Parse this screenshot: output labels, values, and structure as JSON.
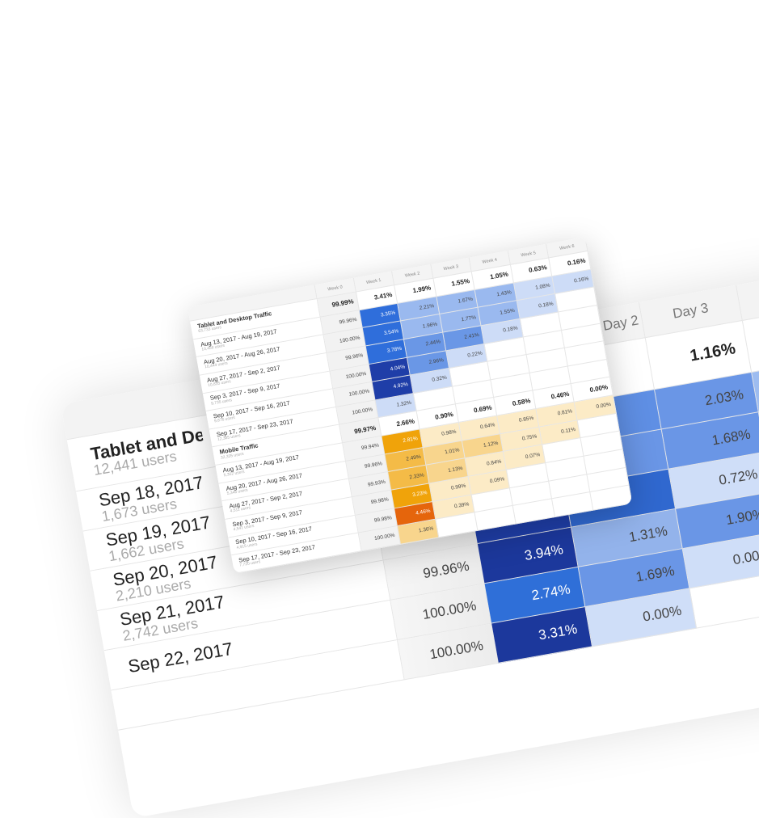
{
  "background_table": {
    "headers": [
      "",
      "",
      "",
      "Day 2",
      "Day 3",
      ""
    ],
    "total_row": {
      "label": "Tablet and Desktop Traffic",
      "users": "12,441 users",
      "values": [
        "",
        "",
        "",
        "1.16%",
        ""
      ]
    },
    "rows": [
      {
        "label": "Sep 18, 2017",
        "users": "1,673 users",
        "values": [
          "",
          "",
          "",
          "2.03%",
          ""
        ],
        "fills": [
          null,
          null,
          "#5f8fe4",
          "#6a96e6",
          "#9dbcf0"
        ]
      },
      {
        "label": "Sep 19, 2017",
        "users": "1,662 users",
        "values": [
          "",
          "",
          "",
          "1.68%",
          ""
        ],
        "fills": [
          null,
          null,
          "#6a96e6",
          "#6a96e6",
          "#cfdef8"
        ]
      },
      {
        "label": "Sep 20, 2017",
        "users": "2,210 users",
        "values": [
          "",
          "",
          "",
          "0.72%",
          ""
        ],
        "fills": [
          null,
          "#1f3ea8",
          "#3068cf",
          "#cfdef8",
          "#cfdef8"
        ]
      },
      {
        "label": "Sep 21, 2017",
        "users": "2,742 users",
        "values": [
          "99.96%",
          "3.94%",
          "1.31%",
          "1.90%",
          ""
        ],
        "fills": [
          null,
          null,
          null,
          null,
          "#cfdef8"
        ]
      },
      {
        "label": "Sep 22, 2017",
        "users": "",
        "values": [
          "100.00%",
          "2.74%",
          "1.69%",
          "0.00%",
          ""
        ],
        "fills": [
          null,
          null,
          null,
          null,
          null
        ]
      },
      {
        "label": "",
        "users": "",
        "values": [
          "100.00%",
          "3.31%",
          "0.00%",
          "",
          ""
        ],
        "fills": [
          null,
          null,
          null,
          null,
          null
        ]
      }
    ]
  },
  "cohort_card": {
    "headers": [
      "",
      "Week 0",
      "Week 1",
      "Week 2",
      "Week 3",
      "Week 4",
      "Week 5",
      "Week 6"
    ],
    "groups": [
      {
        "palette": "blue",
        "label": "Tablet and Desktop Traffic",
        "users": "63,733 users",
        "totals": [
          "99.99%",
          "3.41%",
          "1.99%",
          "1.55%",
          "1.05%",
          "0.63%",
          "0.16%"
        ],
        "rows": [
          {
            "label": "Aug 13, 2017 - Aug 19, 2017",
            "users": "10,458 users",
            "values": [
              "99.96%",
              "3.35%",
              "2.21%",
              "1.67%",
              "1.43%",
              "1.08%",
              "0.16%"
            ]
          },
          {
            "label": "Aug 20, 2017 - Aug 26, 2017",
            "users": "10,444 users",
            "values": [
              "100.00%",
              "3.54%",
              "1.96%",
              "1.77%",
              "1.55%",
              "0.18%"
            ]
          },
          {
            "label": "Aug 27, 2017 - Sep 2, 2017",
            "users": "10,835 users",
            "values": [
              "99.96%",
              "3.78%",
              "2.44%",
              "2.41%",
              "0.18%"
            ]
          },
          {
            "label": "Sep 3, 2017 - Sep 9, 2017",
            "users": "9,735 users",
            "values": [
              "100.00%",
              "4.04%",
              "2.96%",
              "0.22%"
            ]
          },
          {
            "label": "Sep 10, 2017 - Sep 16, 2017",
            "users": "9,876 users",
            "values": [
              "100.00%",
              "4.92%",
              "0.32%"
            ]
          },
          {
            "label": "Sep 17, 2017 - Sep 23, 2017",
            "users": "12,385 users",
            "values": [
              "100.00%",
              "1.32%"
            ]
          }
        ]
      },
      {
        "palette": "orange",
        "label": "Mobile Traffic",
        "users": "32,335 users",
        "totals": [
          "99.97%",
          "2.66%",
          "0.90%",
          "0.69%",
          "0.58%",
          "0.46%",
          "0.00%"
        ],
        "rows": [
          {
            "label": "Aug 13, 2017 - Aug 19, 2017",
            "users": "5,302 users",
            "values": [
              "99.94%",
              "2.81%",
              "0.98%",
              "0.64%",
              "0.85%",
              "0.81%",
              "0.00%"
            ]
          },
          {
            "label": "Aug 20, 2017 - Aug 26, 2017",
            "users": "5,346 users",
            "values": [
              "99.96%",
              "2.49%",
              "1.01%",
              "1.12%",
              "0.75%",
              "0.11%"
            ]
          },
          {
            "label": "Aug 27, 2017 - Sep 2, 2017",
            "users": "4,511 users",
            "values": [
              "99.93%",
              "2.33%",
              "1.13%",
              "0.84%",
              "0.07%"
            ]
          },
          {
            "label": "Sep 3, 2017 - Sep 9, 2017",
            "users": "4,541 users",
            "values": [
              "99.98%",
              "3.23%",
              "0.99%",
              "0.09%"
            ]
          },
          {
            "label": "Sep 10, 2017 - Sep 16, 2017",
            "users": "4,915 users",
            "values": [
              "99.98%",
              "4.46%",
              "0.39%"
            ]
          },
          {
            "label": "Sep 17, 2017 - Sep 23, 2017",
            "users": "7,720 users",
            "values": [
              "100.00%",
              "1.36%"
            ]
          }
        ]
      }
    ]
  },
  "colors": {
    "blue": [
      "#cddcf7",
      "#9ab9ef",
      "#6a97e6",
      "#2f6edb",
      "#1f3ea8"
    ],
    "orange": [
      "#fcebc6",
      "#f8d58d",
      "#f4bb47",
      "#f0a30a",
      "#e5650c"
    ]
  }
}
